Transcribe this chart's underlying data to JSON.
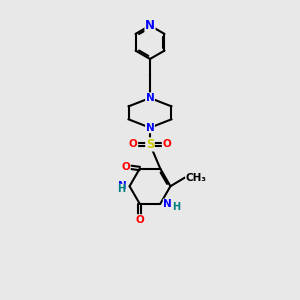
{
  "bg_color": "#e8e8e8",
  "bond_color": "#000000",
  "bond_width": 1.5,
  "atom_colors": {
    "N": "#0000ff",
    "O": "#ff0000",
    "S": "#cccc00",
    "C": "#000000",
    "H": "#008080"
  },
  "font_size_atoms": 7.5,
  "font_size_small": 6.5
}
